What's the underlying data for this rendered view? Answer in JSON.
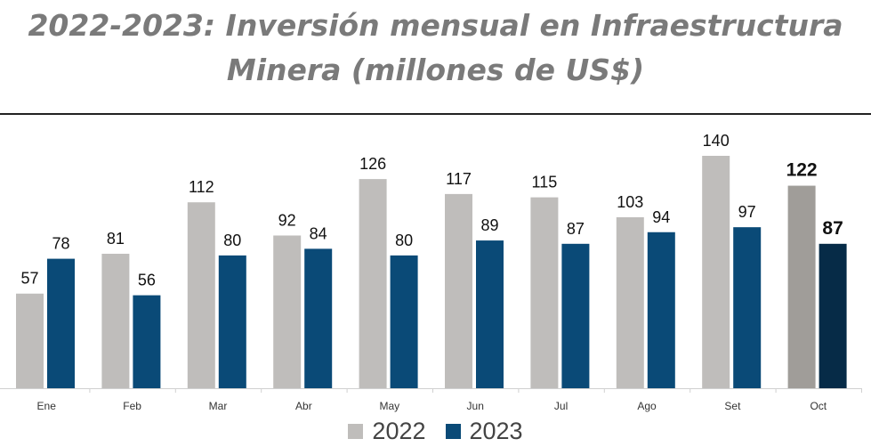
{
  "chart_data": {
    "type": "bar",
    "title_line1": "2022-2023: Inversión mensual en Infraestructura",
    "title_line2": "Minera (millones de US$)",
    "categories": [
      "Ene",
      "Feb",
      "Mar",
      "Abr",
      "May",
      "Jun",
      "Jul",
      "Ago",
      "Set",
      "Oct"
    ],
    "series": [
      {
        "name": "2022",
        "values": [
          57,
          81,
          112,
          92,
          126,
          117,
          115,
          103,
          140,
          122
        ],
        "color": "#bfbdbb",
        "highlight_color": "#a09d99"
      },
      {
        "name": "2023",
        "values": [
          78,
          56,
          80,
          84,
          80,
          89,
          87,
          94,
          97,
          87
        ],
        "color": "#0a4a77",
        "highlight_color": "#062b47"
      }
    ],
    "highlight_category": "Oct",
    "ylim": [
      0,
      140
    ],
    "xlabel": "",
    "ylabel": "",
    "grid": false,
    "legend": "bottom"
  }
}
